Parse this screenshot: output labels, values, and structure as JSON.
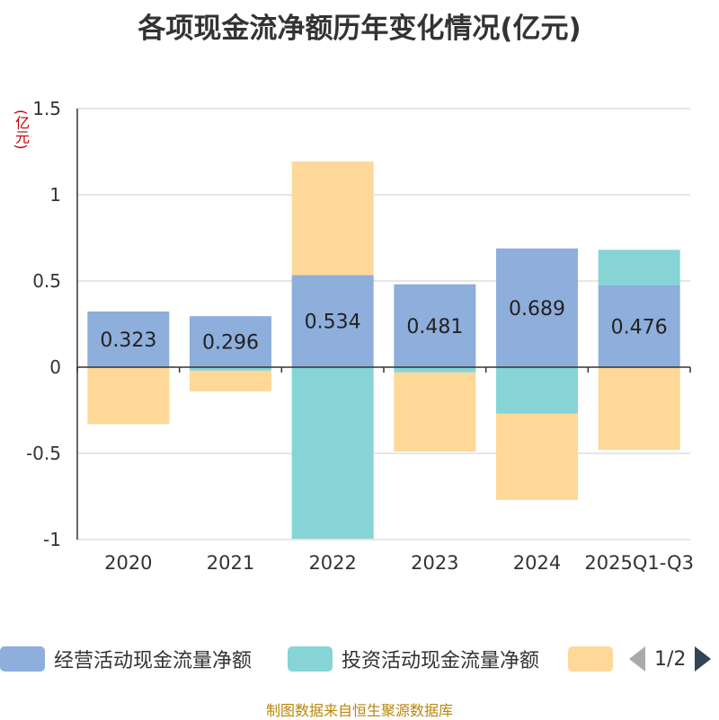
{
  "chart_data": {
    "type": "bar",
    "stacked": true,
    "title": "各项现金流净额历年变化情况(亿元)",
    "ylabel": "(亿元)",
    "categories": [
      "2020",
      "2021",
      "2022",
      "2023",
      "2024",
      "2025Q1-Q3"
    ],
    "ylim": [
      -1,
      1.5
    ],
    "yticks": [
      1.5,
      1,
      0.5,
      0,
      -0.5,
      -1
    ],
    "ytick_labels": [
      "1.5",
      "1",
      "0.5",
      "0",
      "-0.5",
      "-1"
    ],
    "series": [
      {
        "name": "经营活动现金流量净额",
        "color": "#8eaedb",
        "values": [
          0.323,
          0.296,
          0.534,
          0.481,
          0.689,
          0.476
        ]
      },
      {
        "name": "投资活动现金流量净额",
        "color": "#86d4d6",
        "values": [
          0.0,
          -0.02,
          -0.995,
          -0.03,
          -0.27,
          0.205
        ]
      },
      {
        "name": "",
        "color": "#fdd898",
        "values": [
          -0.33,
          -0.12,
          0.66,
          -0.46,
          -0.5,
          -0.48
        ]
      }
    ],
    "data_labels": [
      "0.323",
      "0.296",
      "0.534",
      "0.481",
      "0.689",
      "0.476"
    ],
    "legend_position": "bottom"
  },
  "legend": {
    "items": [
      "经营活动现金流量净额",
      "投资活动现金流量净额",
      ""
    ],
    "page": "1/2"
  },
  "source": "制图数据来自恒生聚源数据库"
}
